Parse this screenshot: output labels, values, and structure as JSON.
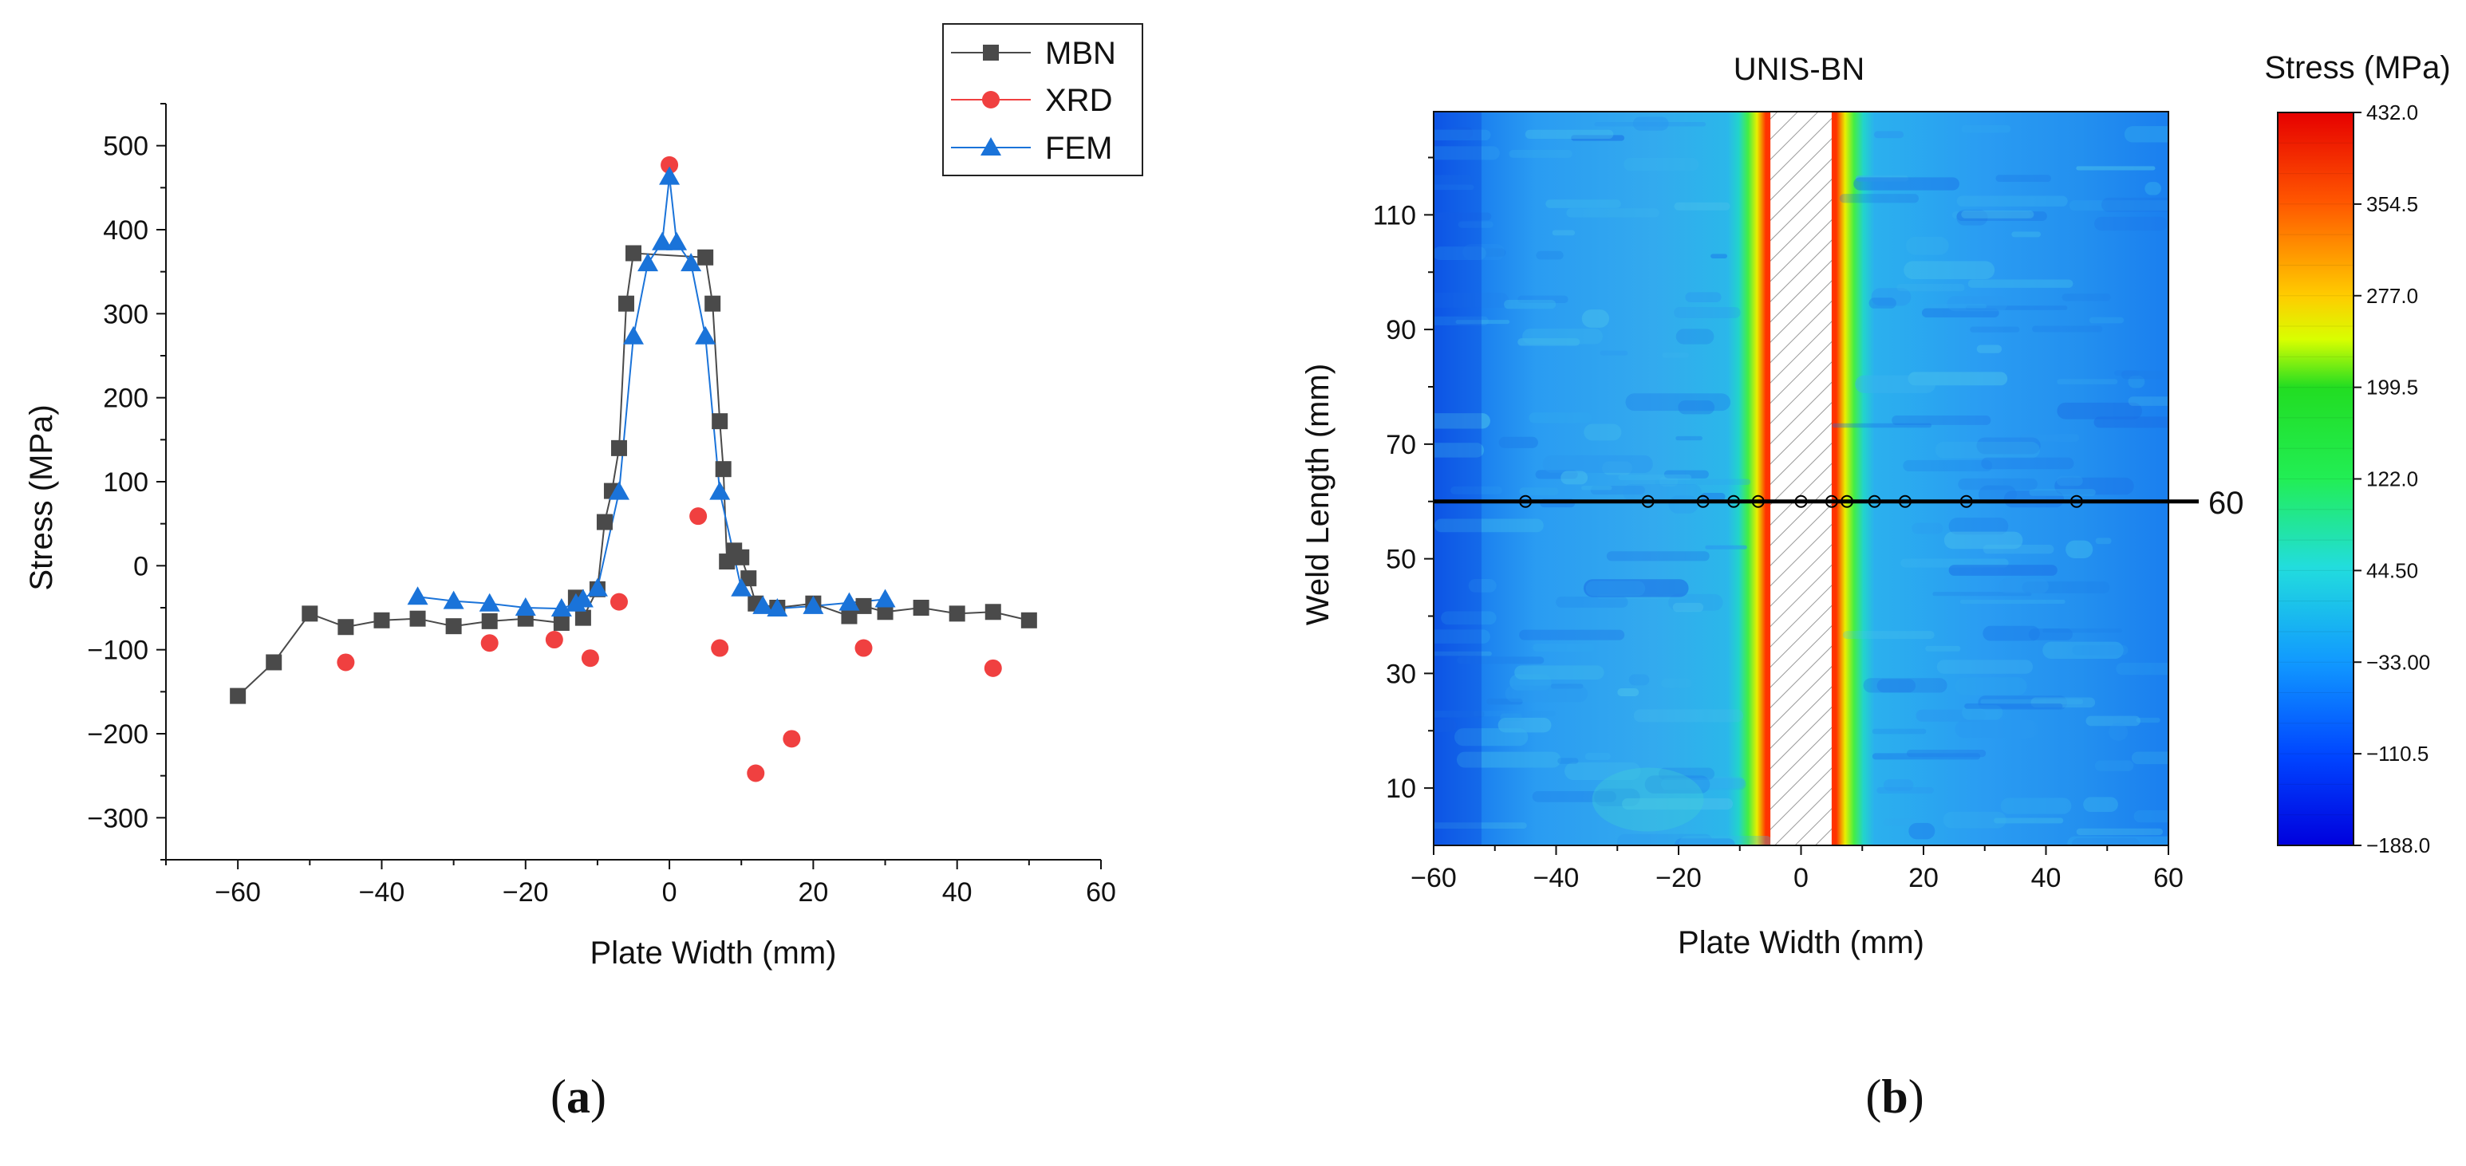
{
  "chart_data": [
    {
      "type": "scatter",
      "panel": "(a)",
      "xlabel": "Plate Width (mm)",
      "ylabel": "Stress (MPa)",
      "xlim": [
        -70,
        60
      ],
      "ylim": [
        -350,
        550
      ],
      "xticks": [
        "-60",
        "-40",
        "-20",
        "0",
        "20",
        "40",
        "60"
      ],
      "xtick_values": [
        -60,
        -40,
        -20,
        0,
        20,
        40,
        60
      ],
      "yticks": [
        "-300",
        "-200",
        "-100",
        "0",
        "100",
        "200",
        "300",
        "400",
        "500"
      ],
      "ytick_values": [
        -300,
        -200,
        -100,
        0,
        100,
        200,
        300,
        400,
        500
      ],
      "legend_position": "top-right",
      "series": [
        {
          "name": "MBN",
          "marker": "square",
          "color": "#4a4a4a",
          "line": true,
          "x": [
            -60,
            -55,
            -50,
            -45,
            -40,
            -35,
            -30,
            -25,
            -20,
            -15,
            -13,
            -12,
            -10,
            -9,
            -8,
            -7,
            -6,
            -5,
            5,
            6,
            7,
            7.5,
            8,
            9,
            10,
            11,
            12,
            15,
            20,
            25,
            27,
            30,
            35,
            40,
            45,
            50
          ],
          "y": [
            -155,
            -115,
            -57,
            -73,
            -65,
            -63,
            -72,
            -66,
            -63,
            -68,
            -38,
            -62,
            -28,
            52,
            89,
            140,
            312,
            372,
            367,
            312,
            172,
            115,
            5,
            18,
            10,
            -15,
            -45,
            -50,
            -45,
            -60,
            -48,
            -55,
            -50,
            -57,
            -55,
            -65
          ]
        },
        {
          "name": "XRD",
          "marker": "circle",
          "color": "#f04040",
          "line": false,
          "x": [
            -45,
            -25,
            -16,
            -11,
            -7,
            0,
            4,
            7,
            12,
            17,
            27,
            45
          ],
          "y": [
            -115,
            -92,
            -88,
            -110,
            -43,
            477,
            59,
            -98,
            -247,
            -206,
            -98,
            -122
          ]
        },
        {
          "name": "FEM",
          "marker": "triangle",
          "color": "#1a73d9",
          "line": true,
          "x": [
            -35,
            -30,
            -25,
            -20,
            -15,
            -13,
            -12,
            -10,
            -7,
            -5,
            -3,
            -1,
            0,
            1,
            3,
            5,
            7,
            10,
            13,
            15,
            20,
            25,
            30
          ],
          "y": [
            -37,
            -42,
            -45,
            -50,
            -51,
            -45,
            -40,
            -27,
            88,
            273,
            360,
            385,
            463,
            385,
            360,
            273,
            88,
            -27,
            -48,
            -51,
            -48,
            -44,
            -40
          ]
        }
      ]
    },
    {
      "type": "heatmap",
      "panel": "(b)",
      "title": "UNIS-BN",
      "xlabel": "Plate Width (mm)",
      "ylabel": "Weld Length (mm)",
      "xlim": [
        -60,
        60
      ],
      "ylim": [
        0,
        128
      ],
      "xticks": [
        "-60",
        "-40",
        "-20",
        "0",
        "20",
        "40",
        "60"
      ],
      "xtick_values": [
        -60,
        -40,
        -20,
        0,
        20,
        40,
        60
      ],
      "yticks": [
        "10",
        "30",
        "50",
        "70",
        "90",
        "110"
      ],
      "ytick_values": [
        10,
        30,
        50,
        70,
        90,
        110
      ],
      "colorbar_title": "Stress (MPa)",
      "colorbar_range": [
        -188.0,
        432.0
      ],
      "colorbar_ticks": [
        "432.0",
        "354.5",
        "277.0",
        "199.5",
        "122.0",
        "44.50",
        "−33.00",
        "−110.5",
        "−188.0"
      ],
      "colorbar_tick_values": [
        432.0,
        354.5,
        277.0,
        199.5,
        122.0,
        44.5,
        -33.0,
        -110.5,
        -188.0
      ],
      "hatched_weld_zone": [
        -5,
        5
      ],
      "line_label": "60",
      "line_y": 60,
      "line_points_x": [
        -45,
        -25,
        -16,
        -11,
        -7,
        0,
        5,
        7.5,
        12,
        17,
        27,
        45
      ]
    }
  ],
  "captions": {
    "a_open": "(",
    "a_letter": "a",
    "a_close": ")",
    "b_open": "(",
    "b_letter": "b",
    "b_close": ")"
  },
  "colors": {
    "axis": "#111111",
    "mbn": "#4a4a4a",
    "xrd": "#f04040",
    "fem": "#1a73d9"
  }
}
